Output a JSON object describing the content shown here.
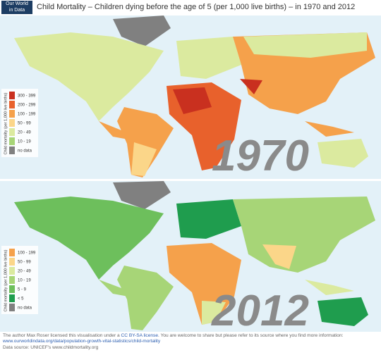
{
  "header": {
    "logo": [
      "Our World",
      "in Data"
    ],
    "title": "Child Mortality – Children dying before the age of 5 (per 1,000 live births) – in 1970 and 2012"
  },
  "maps": [
    {
      "year": "1970",
      "legend_title": "Child mortality (per 1,000 live births)",
      "legend": [
        {
          "label": "300 - 399",
          "color": "#c9301f"
        },
        {
          "label": "200 - 299",
          "color": "#e8612c"
        },
        {
          "label": "100 - 199",
          "color": "#f5a14b"
        },
        {
          "label": "50 - 99",
          "color": "#fbd689"
        },
        {
          "label": "20 - 49",
          "color": "#dbea9f"
        },
        {
          "label": "10 - 19",
          "color": "#a7d577"
        },
        {
          "label": "no data",
          "color": "#808080"
        }
      ]
    },
    {
      "year": "2012",
      "legend_title": "Child mortality (per 1,000 live births)",
      "legend": [
        {
          "label": "100 - 199",
          "color": "#f5a14b"
        },
        {
          "label": "50 - 99",
          "color": "#fbd689"
        },
        {
          "label": "20 - 49",
          "color": "#dbea9f"
        },
        {
          "label": "10 - 19",
          "color": "#a7d577"
        },
        {
          "label": "5 - 9",
          "color": "#6dbf5c"
        },
        {
          "label": "< 5",
          "color": "#1f9d4e"
        },
        {
          "label": "no data",
          "color": "#808080"
        }
      ]
    }
  ],
  "footer": {
    "line1": [
      "The author Max Roser licensed this visualisation under a ",
      "CC BY-SA license",
      ". You are welcome to share but please refer to its source where you find more information: ",
      "www.ourworldindata.org/data/population-growth-vital-statistics/child-mortality"
    ],
    "line2": "Data source: UNICEF's www.childmortality.org"
  }
}
